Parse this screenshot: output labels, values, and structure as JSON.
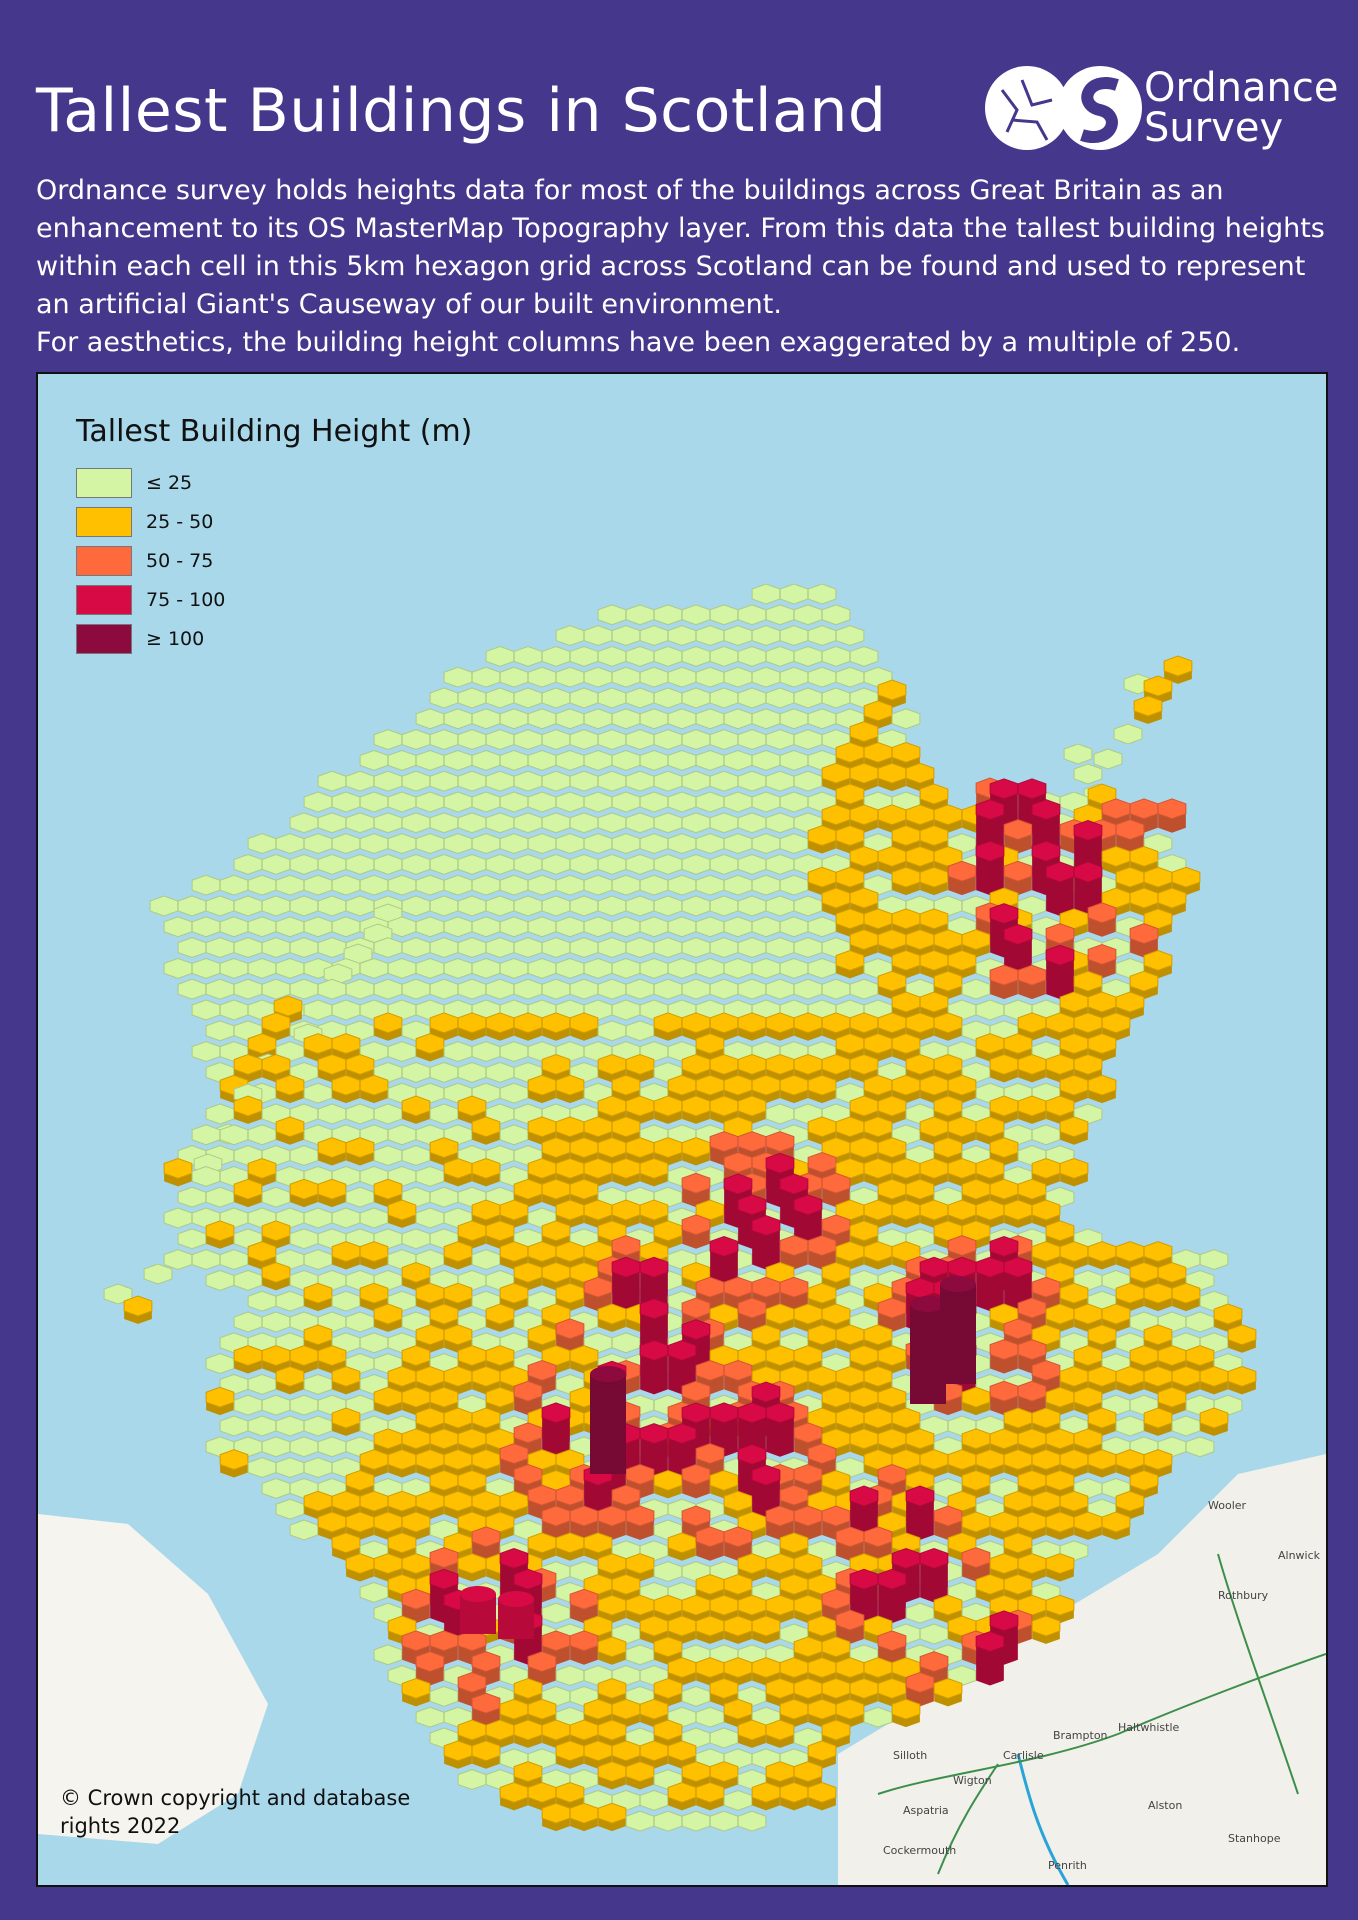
{
  "title": "Tallest Buildings in Scotland",
  "logo": {
    "line1": "Ordnance",
    "line2": "Survey"
  },
  "intro": {
    "paragraph1": "Ordnance survey holds heights data for most of the buildings across Great Britain as an enhancement to its OS MasterMap Topography layer. From this data the tallest building heights within each cell in this 5km hexagon grid across Scotland can be found and used to represent an artificial Giant's Causeway of our built environment.",
    "paragraph2": "For aesthetics, the building height columns have been exaggerated by a multiple of 250."
  },
  "legend": {
    "title": "Tallest Building Height (m)",
    "items": [
      {
        "label": "≤ 25",
        "color": "#d4f5a3"
      },
      {
        "label": "25 - 50",
        "color": "#ffc000"
      },
      {
        "label": "50 - 75",
        "color": "#ff6a3d"
      },
      {
        "label": "75 - 100",
        "color": "#d80a45"
      },
      {
        "label": "≥ 100",
        "color": "#8c0a3e"
      }
    ]
  },
  "copyright": "© Crown copyright and database rights 2022",
  "places": [
    "Carlisle",
    "Brampton",
    "Haltwhistle",
    "Silloth",
    "Wigton",
    "Aspatria",
    "Cockermouth",
    "Penrith",
    "Alston",
    "Stanhope",
    "Rothbury",
    "Wooler",
    "Alnwick"
  ],
  "colors": {
    "background": "#44378c",
    "sea": "#a8d8ea",
    "land": "#f1f0ea"
  }
}
